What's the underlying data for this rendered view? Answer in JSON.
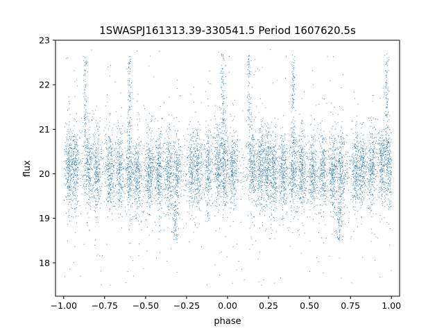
{
  "chart_data": {
    "type": "scatter",
    "title": "1SWASPJ161313.39-330541.5 Period 1607620.5s",
    "xlabel": "phase",
    "ylabel": "flux",
    "xlim": [
      -1.05,
      1.05
    ],
    "ylim": [
      17.25,
      23.0
    ],
    "xticks": [
      -1.0,
      -0.75,
      -0.5,
      -0.25,
      0.0,
      0.25,
      0.5,
      0.75,
      1.0
    ],
    "xtick_labels": [
      "−1.00",
      "−0.75",
      "−0.50",
      "−0.25",
      "0.00",
      "0.25",
      "0.50",
      "0.75",
      "1.00"
    ],
    "yticks": [
      18,
      19,
      20,
      21,
      22,
      23
    ],
    "ytick_labels": [
      "18",
      "19",
      "20",
      "21",
      "22",
      "23"
    ],
    "grid": false,
    "marker_color": "#1f77b4",
    "series": [
      {
        "x_range": [
          -1.0,
          1.0
        ],
        "approx_points": 9000,
        "mean_flux": 20.1,
        "flux_spread": 0.45,
        "flux_min": 17.5,
        "flux_max": 22.8,
        "note_pattern": "folded light curve, data repeated over two phase cycles",
        "dense_columns_x": [
          -0.97,
          -0.93,
          -0.85,
          -0.8,
          -0.72,
          -0.66,
          -0.6,
          -0.55,
          -0.48,
          -0.42,
          -0.36,
          -0.31,
          -0.22,
          -0.18,
          -0.12,
          -0.06,
          -0.02,
          0.03,
          0.15,
          0.2,
          0.24,
          0.28,
          0.34,
          0.4,
          0.45,
          0.52,
          0.58,
          0.64,
          0.69,
          0.78,
          0.82,
          0.88,
          0.94,
          0.98
        ],
        "upper_outlier_columns_x": [
          -0.87,
          -0.6,
          -0.03,
          0.13,
          0.4,
          0.97
        ],
        "low_dip_columns_x": [
          -0.32,
          0.68
        ]
      }
    ]
  }
}
